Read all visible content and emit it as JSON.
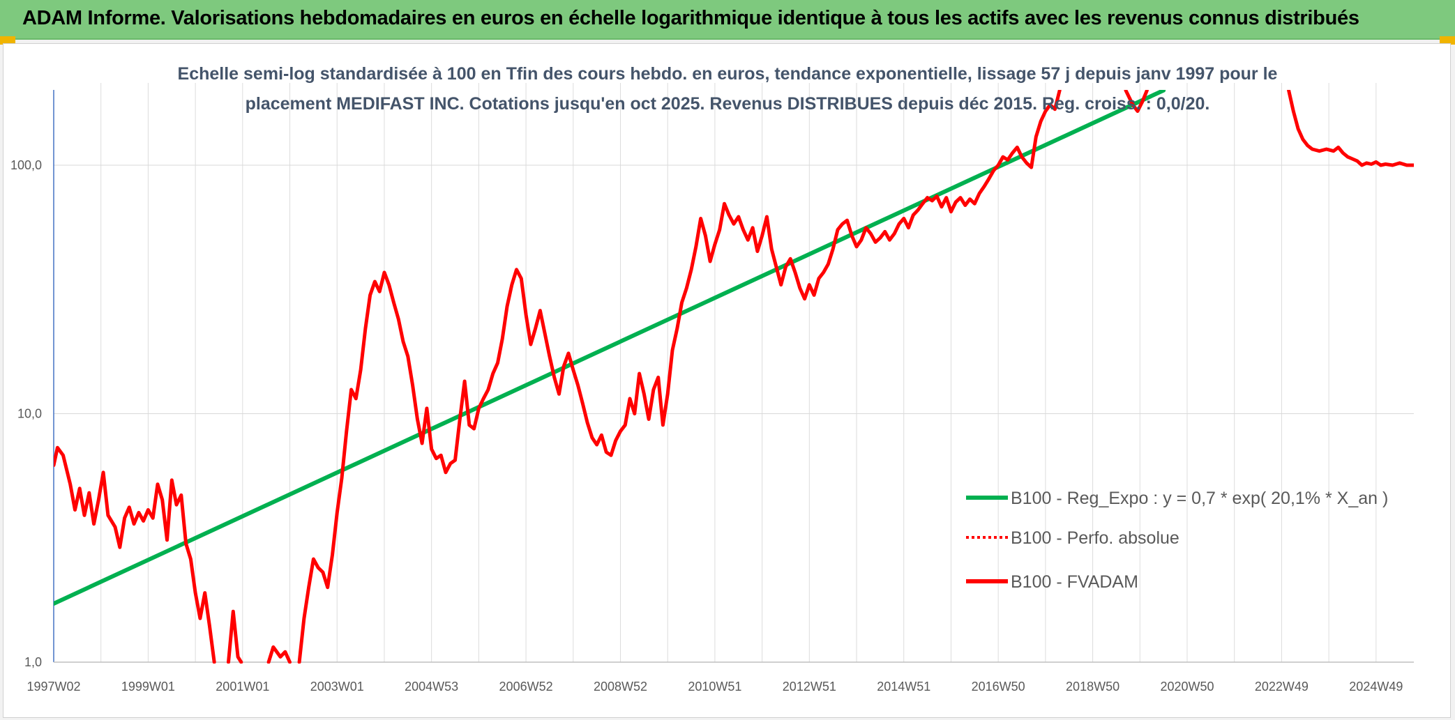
{
  "header": {
    "title": "ADAM Informe. Valorisations hebdomadaires en euros en échelle logarithmique identique à tous les actifs avec les revenus connus distribués"
  },
  "chart_data": {
    "type": "line",
    "subtitle_line1": "Echelle semi-log standardisée à 100 en Tfin des cours hebdo. en euros, tendance exponentielle, lissage 57 j depuis janv 1997 pour le",
    "subtitle_line2": "placement MEDIFAST INC. Cotations jusqu'en oct 2025. Revenus DISTRIBUES depuis déc 2015. Reg. croiss. : 0,0/20.",
    "y_scale": "log",
    "ylim": [
      1,
      200
    ],
    "xlim": [
      1997.0,
      2025.8
    ],
    "grid": true,
    "legend_position": "right",
    "y_ticks": [
      {
        "value": 1,
        "label": "1,0"
      },
      {
        "value": 10,
        "label": "10,0"
      },
      {
        "value": 100,
        "label": "100,0"
      }
    ],
    "x_ticks": [
      {
        "value": 1997.0,
        "label": "1997W02"
      },
      {
        "value": 1999.0,
        "label": "1999W01"
      },
      {
        "value": 2001.0,
        "label": "2001W01"
      },
      {
        "value": 2003.0,
        "label": "2003W01"
      },
      {
        "value": 2005.0,
        "label": "2004W53"
      },
      {
        "value": 2007.0,
        "label": "2006W52"
      },
      {
        "value": 2009.0,
        "label": "2008W52"
      },
      {
        "value": 2011.0,
        "label": "2010W51"
      },
      {
        "value": 2013.0,
        "label": "2012W51"
      },
      {
        "value": 2015.0,
        "label": "2014W51"
      },
      {
        "value": 2017.0,
        "label": "2016W50"
      },
      {
        "value": 2019.0,
        "label": "2018W50"
      },
      {
        "value": 2021.0,
        "label": "2020W50"
      },
      {
        "value": 2023.0,
        "label": "2022W49"
      },
      {
        "value": 2025.0,
        "label": "2024W49"
      }
    ],
    "series": [
      {
        "name": "B100 - Reg_Expo : y = 0,7 * exp( 20,1% *  X_an )",
        "color": "#00b050",
        "style": "solid",
        "points": [
          [
            1997.0,
            1.72
          ],
          [
            2020.5,
            200
          ]
        ]
      },
      {
        "name": "B100 - Perfo. absolue",
        "color": "#ff0000",
        "style": "dotted",
        "points": []
      },
      {
        "name": "B100 - FVADAM",
        "color": "#ff0000",
        "style": "solid",
        "points": [
          [
            1997.0,
            6.2
          ],
          [
            1997.08,
            7.3
          ],
          [
            1997.2,
            6.8
          ],
          [
            1997.35,
            5.2
          ],
          [
            1997.45,
            4.1
          ],
          [
            1997.55,
            5.0
          ],
          [
            1997.65,
            3.9
          ],
          [
            1997.75,
            4.8
          ],
          [
            1997.85,
            3.6
          ],
          [
            1997.95,
            4.5
          ],
          [
            1998.05,
            5.8
          ],
          [
            1998.15,
            3.9
          ],
          [
            1998.3,
            3.5
          ],
          [
            1998.4,
            2.9
          ],
          [
            1998.5,
            3.8
          ],
          [
            1998.6,
            4.2
          ],
          [
            1998.7,
            3.6
          ],
          [
            1998.8,
            4.0
          ],
          [
            1998.9,
            3.7
          ],
          [
            1999.0,
            4.1
          ],
          [
            1999.1,
            3.8
          ],
          [
            1999.2,
            5.2
          ],
          [
            1999.3,
            4.5
          ],
          [
            1999.4,
            3.1
          ],
          [
            1999.5,
            5.4
          ],
          [
            1999.6,
            4.3
          ],
          [
            1999.7,
            4.7
          ],
          [
            1999.8,
            3.0
          ],
          [
            1999.9,
            2.6
          ],
          [
            2000.0,
            1.9
          ],
          [
            2000.1,
            1.5
          ],
          [
            2000.2,
            1.9
          ],
          [
            2000.3,
            1.4
          ],
          [
            2000.4,
            1.0
          ]
        ]
      },
      {
        "name": "B100 - FVADAM",
        "color": "#ff0000",
        "style": "solid",
        "points": [
          [
            2000.7,
            1.0
          ],
          [
            2000.8,
            1.6
          ],
          [
            2000.9,
            1.05
          ],
          [
            2000.97,
            1.0
          ]
        ]
      },
      {
        "name": "B100 - FVADAM",
        "color": "#ff0000",
        "style": "solid",
        "points": [
          [
            2001.55,
            1.0
          ],
          [
            2001.65,
            1.15
          ],
          [
            2001.8,
            1.05
          ],
          [
            2001.9,
            1.1
          ],
          [
            2002.0,
            1.0
          ]
        ]
      },
      {
        "name": "B100 - FVADAM",
        "color": "#ff0000",
        "style": "solid",
        "points": [
          [
            2002.2,
            1.0
          ],
          [
            2002.3,
            1.5
          ],
          [
            2002.4,
            2.0
          ],
          [
            2002.5,
            2.6
          ],
          [
            2002.6,
            2.4
          ],
          [
            2002.7,
            2.3
          ],
          [
            2002.8,
            2.0
          ],
          [
            2002.9,
            2.7
          ],
          [
            2003.0,
            4.0
          ],
          [
            2003.1,
            5.5
          ],
          [
            2003.2,
            8.5
          ],
          [
            2003.3,
            12.5
          ],
          [
            2003.4,
            11.5
          ],
          [
            2003.5,
            15.0
          ],
          [
            2003.6,
            22.0
          ],
          [
            2003.7,
            30.0
          ],
          [
            2003.8,
            34.0
          ],
          [
            2003.9,
            31.0
          ],
          [
            2004.0,
            37.0
          ],
          [
            2004.1,
            33.0
          ],
          [
            2004.2,
            28.0
          ],
          [
            2004.3,
            24.0
          ],
          [
            2004.4,
            19.5
          ],
          [
            2004.5,
            17.0
          ],
          [
            2004.6,
            13.0
          ],
          [
            2004.7,
            9.5
          ],
          [
            2004.8,
            7.6
          ],
          [
            2004.9,
            10.5
          ],
          [
            2005.0,
            7.2
          ],
          [
            2005.1,
            6.6
          ],
          [
            2005.2,
            6.8
          ],
          [
            2005.3,
            5.8
          ],
          [
            2005.4,
            6.3
          ],
          [
            2005.5,
            6.5
          ],
          [
            2005.6,
            9.5
          ],
          [
            2005.7,
            13.5
          ],
          [
            2005.8,
            9.0
          ],
          [
            2005.9,
            8.7
          ],
          [
            2006.0,
            10.5
          ],
          [
            2006.1,
            11.5
          ],
          [
            2006.2,
            12.5
          ],
          [
            2006.3,
            14.5
          ],
          [
            2006.4,
            16.0
          ],
          [
            2006.5,
            20.0
          ],
          [
            2006.6,
            27.0
          ],
          [
            2006.7,
            33.0
          ],
          [
            2006.8,
            38.0
          ],
          [
            2006.9,
            35.0
          ],
          [
            2007.0,
            25.0
          ],
          [
            2007.1,
            19.0
          ],
          [
            2007.2,
            22.0
          ],
          [
            2007.3,
            26.0
          ],
          [
            2007.4,
            21.0
          ],
          [
            2007.5,
            17.0
          ],
          [
            2007.6,
            14.0
          ],
          [
            2007.7,
            12.0
          ],
          [
            2007.8,
            15.5
          ],
          [
            2007.9,
            17.5
          ],
          [
            2008.0,
            15.0
          ],
          [
            2008.1,
            13.0
          ],
          [
            2008.2,
            11.0
          ],
          [
            2008.3,
            9.2
          ],
          [
            2008.4,
            8.0
          ],
          [
            2008.5,
            7.5
          ],
          [
            2008.6,
            8.2
          ],
          [
            2008.7,
            7.0
          ],
          [
            2008.8,
            6.8
          ],
          [
            2008.9,
            7.8
          ],
          [
            2009.0,
            8.5
          ],
          [
            2009.1,
            9.0
          ],
          [
            2009.2,
            11.5
          ],
          [
            2009.3,
            10.0
          ],
          [
            2009.4,
            14.5
          ],
          [
            2009.5,
            12.0
          ],
          [
            2009.6,
            9.5
          ],
          [
            2009.7,
            12.5
          ],
          [
            2009.8,
            14.0
          ],
          [
            2009.9,
            9.0
          ],
          [
            2010.0,
            12.0
          ],
          [
            2010.1,
            18.0
          ],
          [
            2010.2,
            22.0
          ],
          [
            2010.3,
            28.0
          ],
          [
            2010.4,
            32.0
          ],
          [
            2010.5,
            38.0
          ],
          [
            2010.6,
            47.0
          ],
          [
            2010.7,
            61.0
          ],
          [
            2010.8,
            52.0
          ],
          [
            2010.9,
            41.0
          ],
          [
            2011.0,
            48.0
          ],
          [
            2011.1,
            55.0
          ],
          [
            2011.2,
            70.0
          ],
          [
            2011.3,
            63.0
          ],
          [
            2011.4,
            58.0
          ],
          [
            2011.5,
            62.0
          ],
          [
            2011.6,
            55.0
          ],
          [
            2011.7,
            50.0
          ],
          [
            2011.8,
            56.0
          ],
          [
            2011.9,
            45.0
          ],
          [
            2012.0,
            52.0
          ],
          [
            2012.1,
            62.0
          ],
          [
            2012.2,
            46.0
          ],
          [
            2012.3,
            39.0
          ],
          [
            2012.4,
            33.0
          ],
          [
            2012.5,
            39.0
          ],
          [
            2012.6,
            42.0
          ],
          [
            2012.7,
            37.0
          ],
          [
            2012.8,
            32.0
          ],
          [
            2012.9,
            29.0
          ],
          [
            2013.0,
            33.0
          ],
          [
            2013.1,
            30.0
          ],
          [
            2013.2,
            35.0
          ],
          [
            2013.3,
            37.0
          ],
          [
            2013.4,
            40.0
          ],
          [
            2013.5,
            46.0
          ],
          [
            2013.6,
            55.0
          ],
          [
            2013.7,
            58.0
          ],
          [
            2013.8,
            60.0
          ],
          [
            2013.9,
            52.0
          ],
          [
            2014.0,
            47.0
          ],
          [
            2014.1,
            50.0
          ],
          [
            2014.2,
            56.0
          ],
          [
            2014.3,
            53.0
          ],
          [
            2014.4,
            49.0
          ],
          [
            2014.5,
            51.0
          ],
          [
            2014.6,
            54.0
          ],
          [
            2014.7,
            50.0
          ],
          [
            2014.8,
            53.0
          ],
          [
            2014.9,
            58.0
          ],
          [
            2015.0,
            61.0
          ],
          [
            2015.1,
            56.0
          ],
          [
            2015.2,
            63.0
          ],
          [
            2015.3,
            66.0
          ],
          [
            2015.4,
            70.0
          ],
          [
            2015.5,
            74.0
          ],
          [
            2015.6,
            72.0
          ],
          [
            2015.7,
            75.0
          ],
          [
            2015.8,
            68.0
          ],
          [
            2015.9,
            74.0
          ],
          [
            2016.0,
            65.0
          ],
          [
            2016.1,
            71.0
          ],
          [
            2016.2,
            74.0
          ],
          [
            2016.3,
            69.0
          ],
          [
            2016.4,
            73.0
          ],
          [
            2016.5,
            70.0
          ],
          [
            2016.6,
            77.0
          ],
          [
            2016.7,
            82.0
          ],
          [
            2016.8,
            88.0
          ],
          [
            2016.9,
            95.0
          ],
          [
            2017.0,
            100.0
          ],
          [
            2017.1,
            108.0
          ],
          [
            2017.2,
            105.0
          ],
          [
            2017.3,
            112.0
          ],
          [
            2017.4,
            118.0
          ],
          [
            2017.5,
            108.0
          ],
          [
            2017.6,
            102.0
          ],
          [
            2017.7,
            98.0
          ],
          [
            2017.8,
            130.0
          ],
          [
            2017.9,
            150.0
          ],
          [
            2018.0,
            165.0
          ],
          [
            2018.1,
            175.0
          ],
          [
            2018.2,
            168.0
          ],
          [
            2018.3,
            200.0
          ]
        ]
      },
      {
        "name": "B100 - FVADAM",
        "color": "#ff0000",
        "style": "solid",
        "points": [
          [
            2019.7,
            200.0
          ],
          [
            2019.85,
            175.0
          ],
          [
            2019.95,
            165.0
          ],
          [
            2020.05,
            180.0
          ],
          [
            2020.15,
            200.0
          ]
        ]
      },
      {
        "name": "B100 - FVADAM",
        "color": "#ff0000",
        "style": "solid",
        "points": [
          [
            2023.15,
            200.0
          ],
          [
            2023.25,
            165.0
          ],
          [
            2023.35,
            140.0
          ],
          [
            2023.45,
            127.0
          ],
          [
            2023.55,
            120.0
          ],
          [
            2023.65,
            116.0
          ],
          [
            2023.8,
            114.0
          ],
          [
            2023.95,
            116.0
          ],
          [
            2024.1,
            114.0
          ],
          [
            2024.2,
            118.0
          ],
          [
            2024.3,
            112.0
          ],
          [
            2024.4,
            108.0
          ],
          [
            2024.5,
            106.0
          ],
          [
            2024.6,
            104.0
          ],
          [
            2024.7,
            100.0
          ],
          [
            2024.8,
            102.0
          ],
          [
            2024.9,
            101.0
          ],
          [
            2025.0,
            103.0
          ],
          [
            2025.1,
            100.0
          ],
          [
            2025.2,
            101.0
          ],
          [
            2025.35,
            100.0
          ],
          [
            2025.5,
            102.0
          ],
          [
            2025.65,
            100.0
          ],
          [
            2025.8,
            100.0
          ]
        ]
      }
    ],
    "legend": [
      {
        "label": "B100 - Reg_Expo : y = 0,7 * exp( 20,1% *  X_an )",
        "color": "#00b050",
        "style": "solid"
      },
      {
        "label": "B100 - Perfo. absolue",
        "color": "#ff0000",
        "style": "dotted"
      },
      {
        "label": "B100 - FVADAM",
        "color": "#ff0000",
        "style": "solid"
      }
    ]
  }
}
